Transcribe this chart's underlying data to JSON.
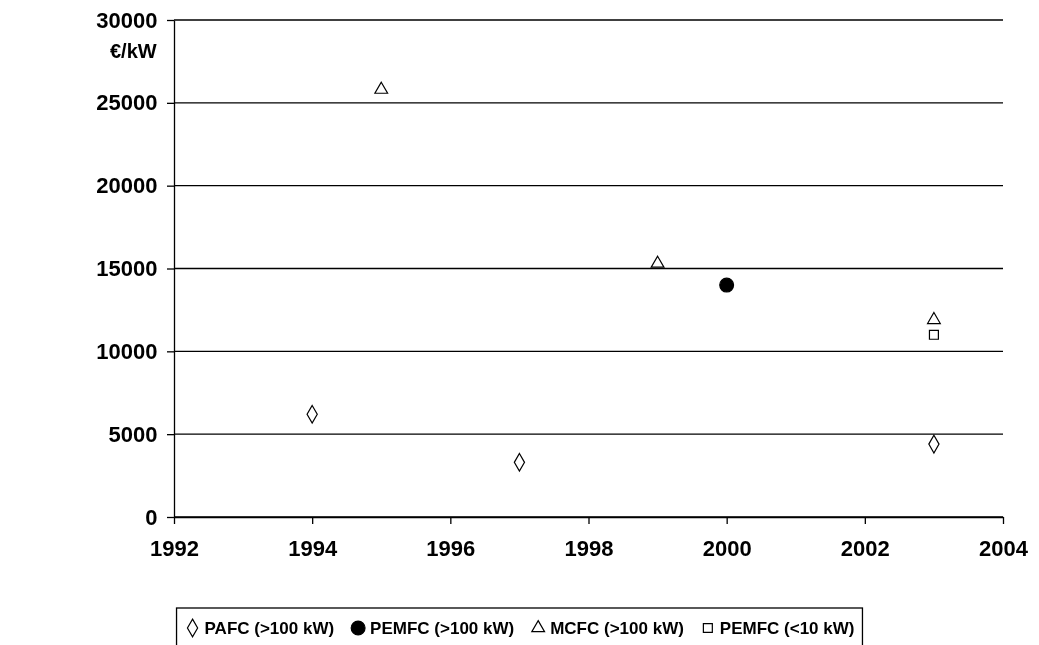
{
  "chart_data": {
    "type": "scatter",
    "ylabel": "€/kW",
    "xlim": [
      1992,
      2004
    ],
    "xticks": [
      1992,
      1994,
      1996,
      1998,
      2000,
      2002,
      2004
    ],
    "ylim": [
      0,
      30000
    ],
    "yticks": [
      0,
      5000,
      10000,
      15000,
      20000,
      25000,
      30000
    ],
    "grid": "y",
    "legend": "bottom",
    "series": [
      {
        "name": "PAFC (>100 kW)",
        "color": "#000000",
        "marker": "diamond",
        "x": [
          1994,
          1997,
          2003
        ],
        "values": [
          6200,
          3300,
          4400
        ]
      },
      {
        "name": "PEMFC (>100 kW)",
        "color": "#000000",
        "marker": "circle",
        "x": [
          2000
        ],
        "values": [
          14000
        ]
      },
      {
        "name": "MCFC (>100 kW)",
        "color": "#000000",
        "marker": "triangle",
        "x": [
          1995,
          1999,
          2003
        ],
        "values": [
          25800,
          15300,
          11900
        ]
      },
      {
        "name": "PEMFC (<10 kW)",
        "color": "#000000",
        "marker": "square",
        "x": [
          2003
        ],
        "values": [
          11000
        ]
      }
    ]
  }
}
